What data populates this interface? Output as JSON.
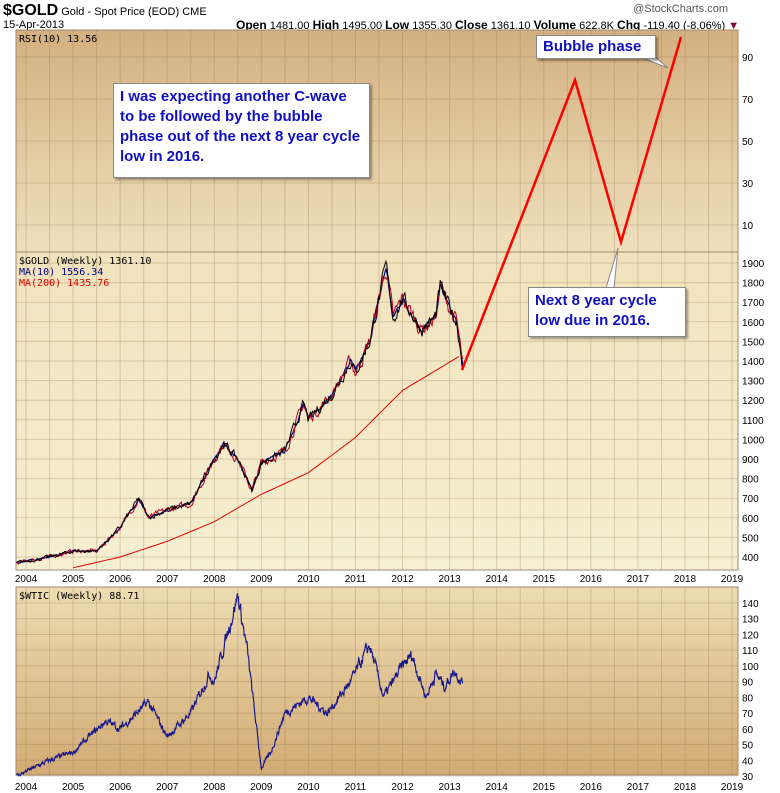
{
  "header": {
    "symbol": "$GOLD",
    "name": "Gold - Spot Price (EOD)",
    "exchange": "CME",
    "date": "15-Apr-2013",
    "copyright": "@StockCharts.com",
    "open_label": "Open",
    "open": "1481.00",
    "high_label": "High",
    "high": "1495.00",
    "low_label": "Low",
    "low": "1355.30",
    "close_label": "Close",
    "close": "1361.10",
    "volume_label": "Volume",
    "volume": "622.8K",
    "chg_label": "Chg",
    "chg": "-119.40 (-8.06%)"
  },
  "annotations": {
    "main": "I was expecting another C-wave to be followed by the bubble phase out of the next 8 year cycle low in 2016.",
    "bubble": "Bubble phase",
    "low": "Next 8 year cycle low due in 2016."
  },
  "colors": {
    "price": "#000000",
    "ma10": "#000080",
    "ma200": "#e00000",
    "wtic": "#1a1a8c",
    "annotation": "#ff0000",
    "callout_text": "#1010c0"
  },
  "chart_data": [
    {
      "type": "line",
      "title": "RSI(10) 13.56",
      "ylim": [
        0,
        100
      ],
      "yticks": [
        10,
        30,
        50,
        70,
        90
      ],
      "series": []
    },
    {
      "type": "line",
      "title": "$GOLD (Weekly) 1361.10",
      "ylim": [
        380,
        1920
      ],
      "yticks": [
        400,
        500,
        600,
        700,
        800,
        900,
        1000,
        1100,
        1200,
        1300,
        1400,
        1500,
        1600,
        1700,
        1800,
        1900
      ],
      "legend": [
        {
          "name": "MA(10) 1556.34",
          "color": "#000080"
        },
        {
          "name": "MA(200) 1435.76",
          "color": "#e00000"
        }
      ],
      "x_ticks": [
        "2004",
        "2005",
        "2006",
        "2007",
        "2008",
        "2009",
        "2010",
        "2011",
        "2012",
        "2013",
        "2014",
        "2015",
        "2016",
        "2017",
        "2018",
        "2019"
      ],
      "series": [
        {
          "name": "$GOLD",
          "x": [
            2003.8,
            2004.5,
            2005.0,
            2005.5,
            2006.0,
            2006.4,
            2006.6,
            2007.0,
            2007.5,
            2008.0,
            2008.2,
            2008.5,
            2008.8,
            2009.0,
            2009.5,
            2009.9,
            2010.0,
            2010.5,
            2010.9,
            2011.0,
            2011.3,
            2011.65,
            2011.8,
            2012.0,
            2012.4,
            2012.7,
            2012.8,
            2013.0,
            2013.15,
            2013.29
          ],
          "values": [
            370,
            400,
            430,
            430,
            550,
            700,
            600,
            640,
            670,
            900,
            980,
            900,
            740,
            880,
            940,
            1180,
            1100,
            1230,
            1400,
            1340,
            1500,
            1880,
            1620,
            1720,
            1560,
            1620,
            1780,
            1670,
            1600,
            1361
          ]
        },
        {
          "name": "MA(200)",
          "x": [
            2005.0,
            2006.0,
            2007.0,
            2008.0,
            2009.0,
            2010.0,
            2011.0,
            2012.0,
            2013.29
          ],
          "values": [
            345,
            400,
            480,
            580,
            720,
            830,
            1010,
            1250,
            1436
          ]
        }
      ]
    },
    {
      "type": "line",
      "title": "$WTIC (Weekly) 88.71",
      "ylim": [
        25,
        148
      ],
      "yticks": [
        30,
        40,
        50,
        60,
        70,
        80,
        90,
        100,
        110,
        120,
        130,
        140
      ],
      "series": [
        {
          "name": "$WTIC",
          "x": [
            2003.8,
            2004.5,
            2005.0,
            2005.7,
            2006.0,
            2006.6,
            2007.0,
            2007.5,
            2007.9,
            2008.0,
            2008.5,
            2008.7,
            2009.0,
            2009.2,
            2009.5,
            2010.0,
            2010.4,
            2010.9,
            2011.3,
            2011.6,
            2012.0,
            2012.2,
            2012.5,
            2012.7,
            2012.9,
            2013.1,
            2013.29
          ],
          "values": [
            30,
            40,
            45,
            65,
            60,
            77,
            55,
            70,
            95,
            90,
            145,
            110,
            35,
            45,
            70,
            80,
            70,
            90,
            113,
            80,
            100,
            107,
            80,
            95,
            87,
            97,
            89
          ]
        }
      ]
    }
  ]
}
